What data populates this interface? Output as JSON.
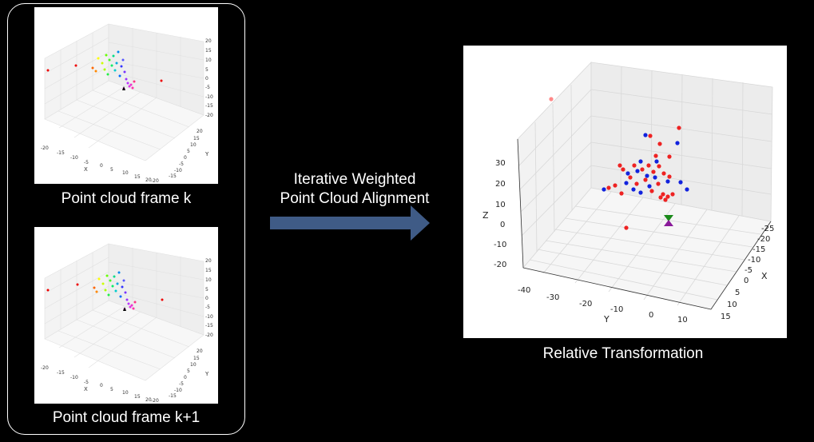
{
  "frame_k": {
    "caption": "Point cloud frame k",
    "axis_x_label": "X",
    "axis_y_label": "Y",
    "x_ticks": [
      "-20",
      "-15",
      "-10",
      "-5",
      "0",
      "5",
      "10",
      "15",
      "20"
    ],
    "y_ticks": [
      "-20",
      "-15",
      "-10",
      "-5",
      "0",
      "5",
      "10",
      "15",
      "20"
    ],
    "z_ticks": [
      "20",
      "15",
      "10",
      "5",
      "0",
      "-5",
      "-10",
      "-15",
      "-20"
    ]
  },
  "frame_k1": {
    "caption": "Point cloud frame k+1",
    "axis_x_label": "X",
    "axis_y_label": "Y",
    "x_ticks": [
      "-20",
      "-15",
      "-10",
      "-5",
      "0",
      "5",
      "10",
      "15",
      "20"
    ],
    "y_ticks": [
      "-20",
      "-15",
      "-10",
      "-5",
      "0",
      "5",
      "10",
      "15",
      "20"
    ],
    "z_ticks": [
      "20",
      "15",
      "10",
      "5",
      "0",
      "-5",
      "-10",
      "-15",
      "-20"
    ]
  },
  "arrow": {
    "line1": "Iterative Weighted",
    "line2": "Point Cloud Alignment",
    "color": "#3f5b86"
  },
  "result": {
    "caption": "Relative Transformation",
    "axis_x_label": "X",
    "axis_y_label": "Y",
    "axis_z_label": "Z",
    "z_ticks": [
      "30",
      "20",
      "10",
      "0",
      "-10",
      "-20"
    ],
    "y_ticks": [
      "-40",
      "-30",
      "-20",
      "-10",
      "0",
      "10"
    ],
    "x_ticks": [
      "-25",
      "-20",
      "-15",
      "-10",
      "-5",
      "0",
      "5",
      "10",
      "15"
    ]
  }
}
